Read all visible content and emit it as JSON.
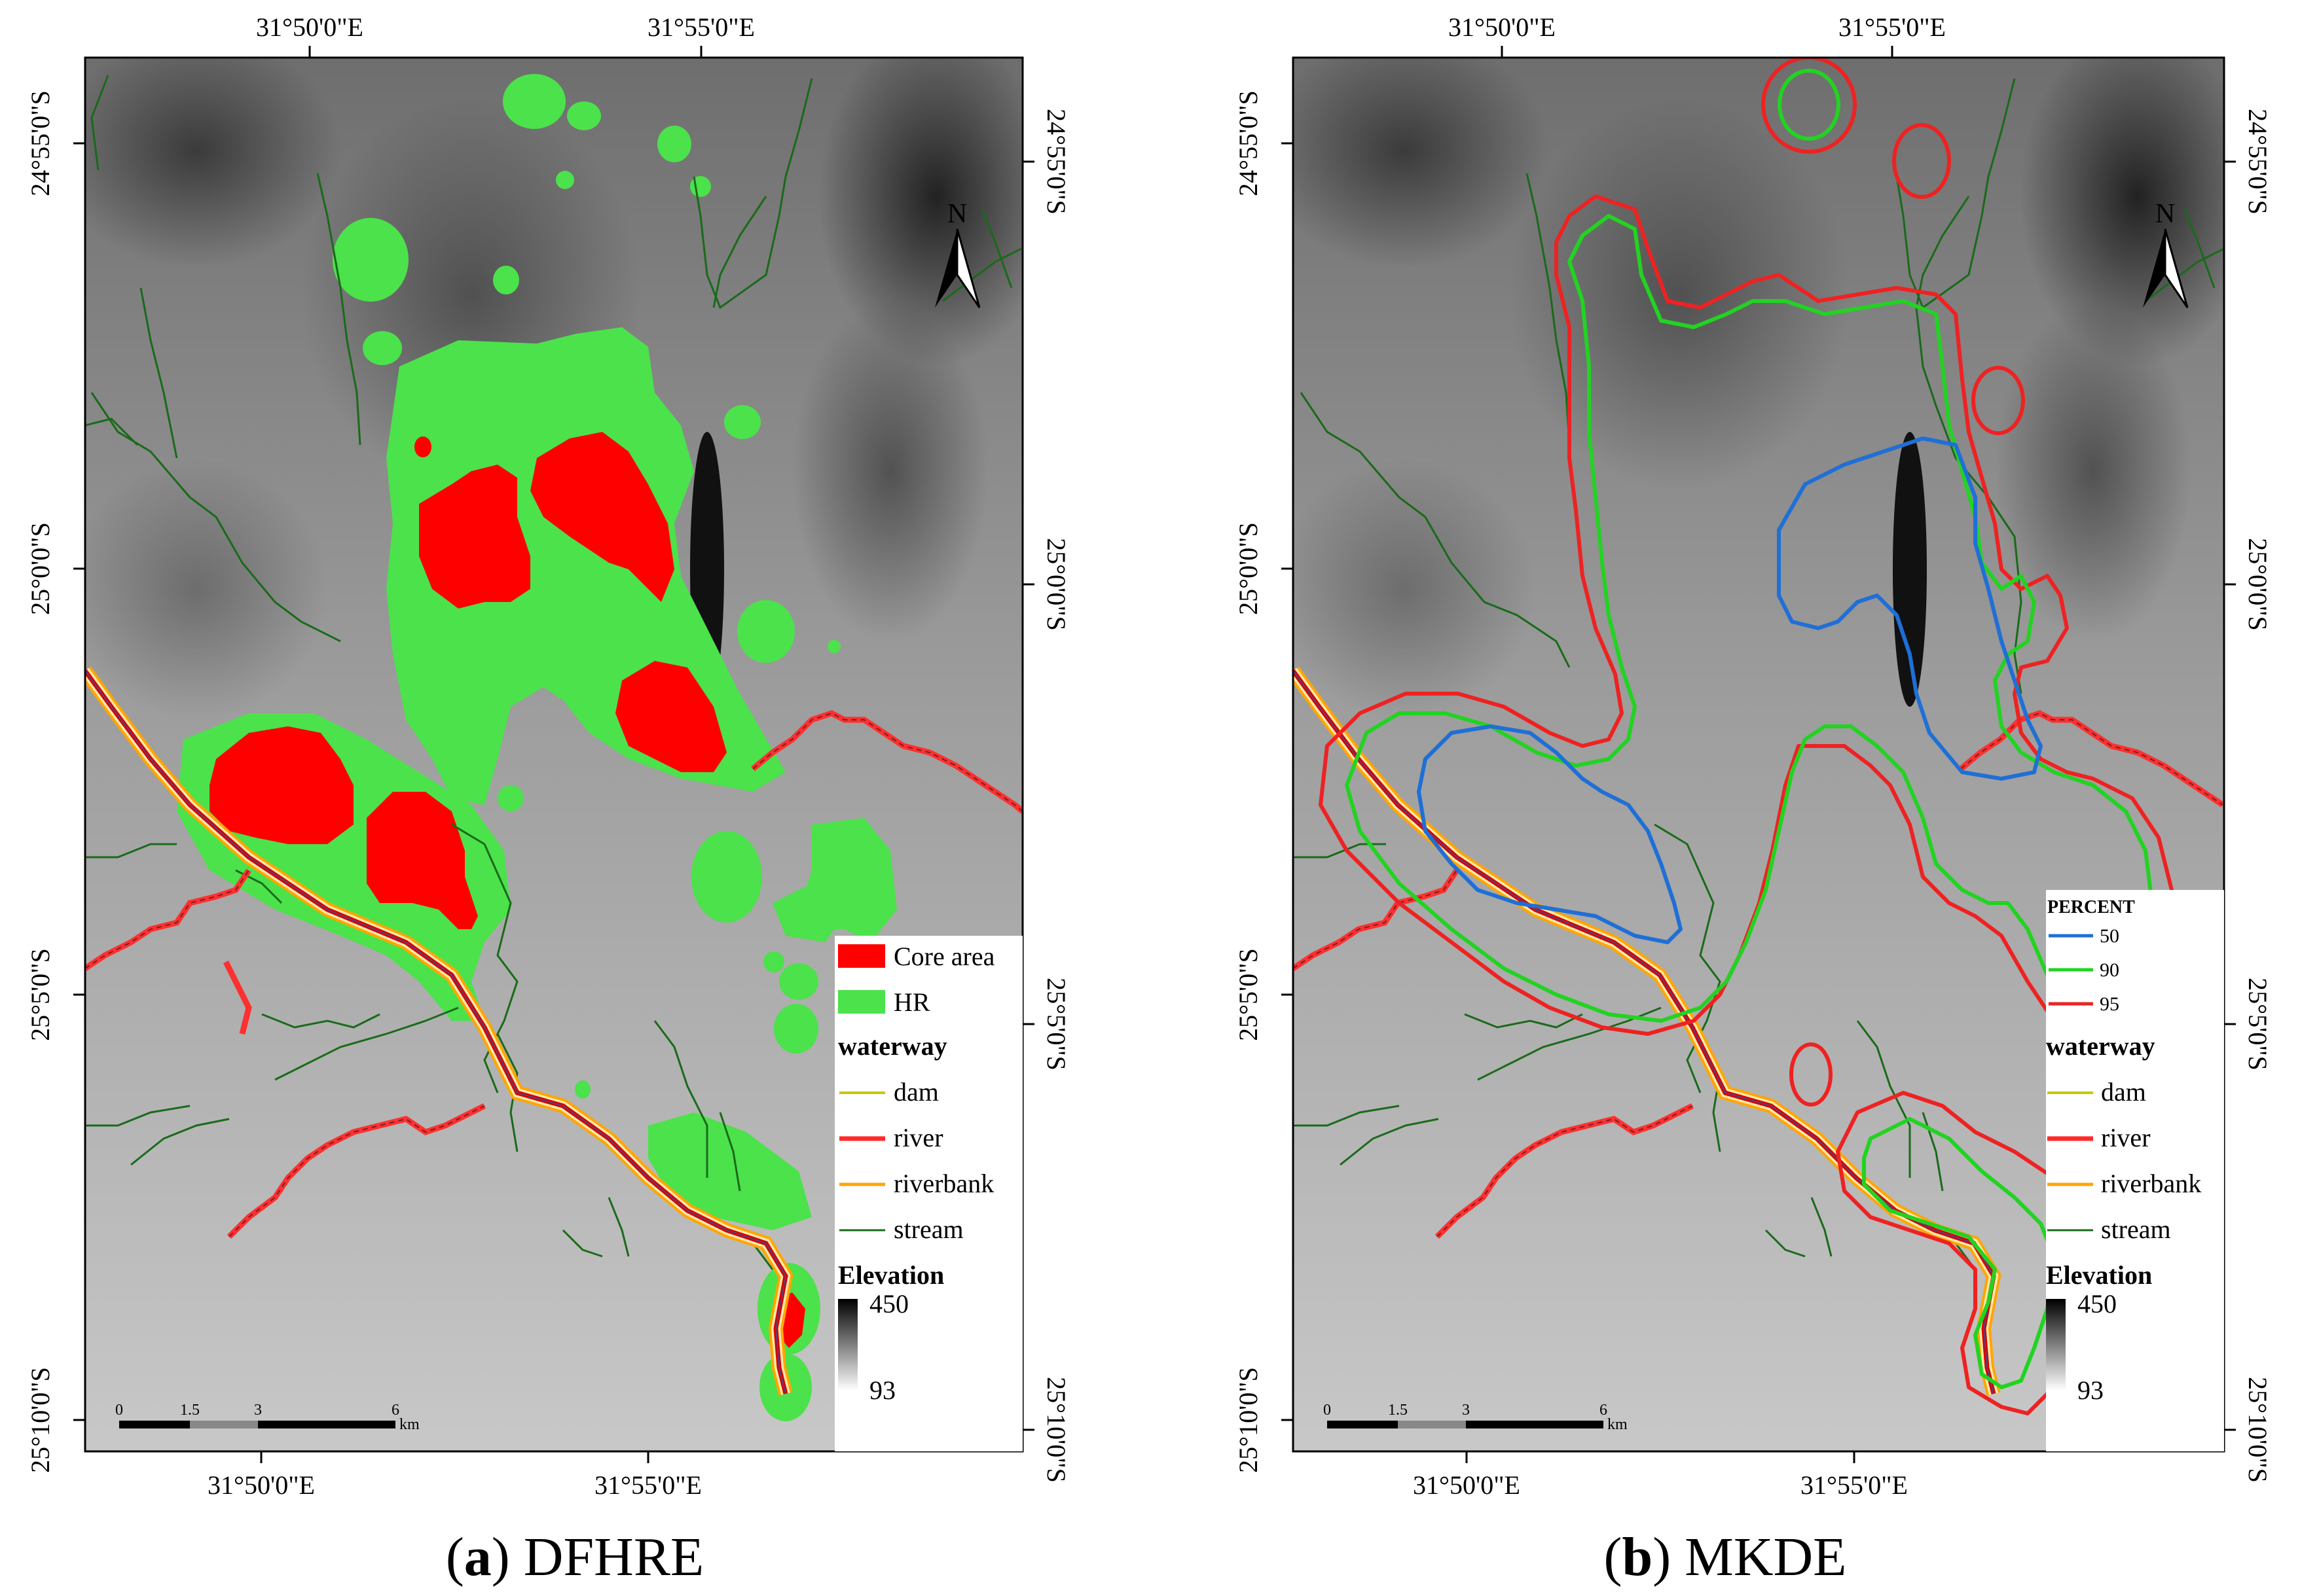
{
  "panels": [
    {
      "caption_letter": "a",
      "caption_text": "DFHRE",
      "top_lon_labels": [
        "31°50'0\"E",
        "31°55'0\"E"
      ],
      "bottom_lon_labels": [
        "31°50'0\"E",
        "31°55'0\"E"
      ],
      "left_lat_labels": [
        "24°55'0\"S",
        "25°0'0\"S",
        "25°5'0\"S",
        "25°10'0\"S"
      ],
      "right_lat_labels": [
        "24°55'0\"S",
        "25°0'0\"S",
        "25°5'0\"S",
        "25°10'0\"S"
      ],
      "north_label": "N",
      "legend": {
        "items": [
          {
            "label": "Core area",
            "color": "#ff0000"
          },
          {
            "label": "HR",
            "color": "#4be24b"
          }
        ],
        "waterway_title": "waterway",
        "waterway_items": [
          {
            "label": "dam",
            "color": "#c8c800"
          },
          {
            "label": "river",
            "color": "#ff2a2a"
          },
          {
            "label": "riverbank",
            "color": "#ffa500"
          },
          {
            "label": "stream",
            "color": "#1a6a1a"
          }
        ],
        "elevation_title": "Elevation",
        "elevation_max": "450",
        "elevation_min": "93"
      },
      "scale": {
        "ticks": [
          "0",
          "1.5",
          "3",
          "6"
        ],
        "unit": "km"
      }
    },
    {
      "caption_letter": "b",
      "caption_text": "MKDE",
      "top_lon_labels": [
        "31°50'0\"E",
        "31°55'0\"E"
      ],
      "bottom_lon_labels": [
        "31°50'0\"E",
        "31°55'0\"E"
      ],
      "left_lat_labels": [
        "24°55'0\"S",
        "25°0'0\"S",
        "25°5'0\"S",
        "25°10'0\"S"
      ],
      "right_lat_labels": [
        "24°55'0\"S",
        "25°0'0\"S",
        "25°5'0\"S",
        "25°10'0\"S"
      ],
      "north_label": "N",
      "legend": {
        "percent_title": "PERCENT",
        "percent_items": [
          {
            "label": "50",
            "color": "#1f6fd6"
          },
          {
            "label": "90",
            "color": "#22d322"
          },
          {
            "label": "95",
            "color": "#ee2222"
          }
        ],
        "waterway_title": "waterway",
        "waterway_items": [
          {
            "label": "dam",
            "color": "#c8c800"
          },
          {
            "label": "river",
            "color": "#ff2a2a"
          },
          {
            "label": "riverbank",
            "color": "#ffa500"
          },
          {
            "label": "stream",
            "color": "#1a6a1a"
          }
        ],
        "elevation_title": "Elevation",
        "elevation_max": "450",
        "elevation_min": "93"
      },
      "scale": {
        "ticks": [
          "0",
          "1.5",
          "3",
          "6"
        ],
        "unit": "km"
      }
    }
  ]
}
